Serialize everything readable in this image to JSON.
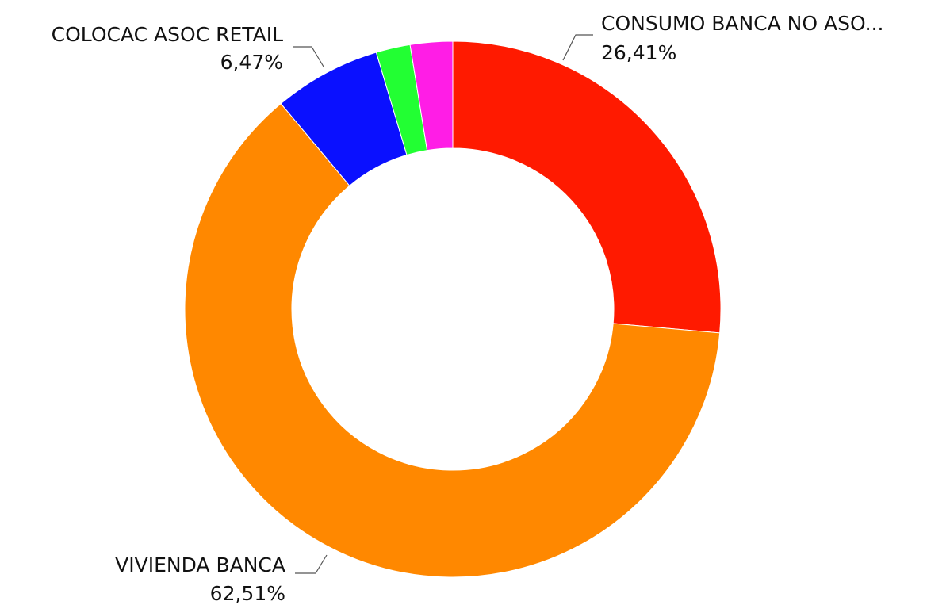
{
  "chart_data": {
    "type": "pie",
    "donut": true,
    "slices": [
      {
        "label": "CONSUMO BANCA NO ASO...",
        "value": 26.41,
        "value_label": "26,41%",
        "color": "#ff1a00",
        "labelled": true
      },
      {
        "label": "VIVIENDA BANCA",
        "value": 62.51,
        "value_label": "62,51%",
        "color": "#ff8800",
        "labelled": true
      },
      {
        "label": "COLOCAC ASOC RETAIL",
        "value": 6.47,
        "value_label": "6,47%",
        "color": "#0a10ff",
        "labelled": true
      },
      {
        "label": "",
        "value": 2.06,
        "value_label": "",
        "color": "#22ff33",
        "labelled": false
      },
      {
        "label": "",
        "value": 2.55,
        "value_label": "",
        "color": "#ff1de6",
        "labelled": false
      }
    ]
  }
}
